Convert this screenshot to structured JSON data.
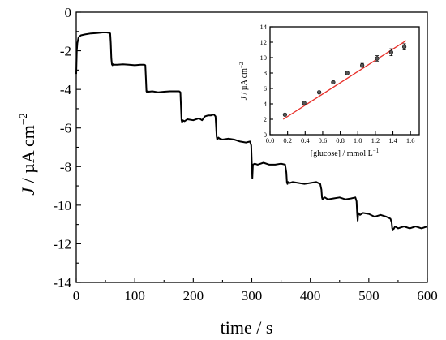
{
  "chart_data": [
    {
      "type": "line",
      "title": "",
      "xlabel": "time / s",
      "ylabel_var": "J",
      "ylabel_rest": " / µA cm",
      "ylabel_exp": "−2",
      "xlim": [
        0,
        600
      ],
      "ylim": [
        -14,
        0
      ],
      "x_ticks": [
        "0",
        "100",
        "200",
        "300",
        "400",
        "500",
        "600"
      ],
      "y_ticks": [
        "0",
        "-2",
        "-4",
        "-6",
        "-8",
        "-10",
        "-12",
        "-14"
      ],
      "line_color": "#000000",
      "grid": false,
      "series": [
        {
          "x": [
            0,
            1,
            2,
            4,
            8,
            15,
            25,
            35,
            45,
            52,
            56,
            58,
            59,
            60,
            61,
            62,
            63,
            64,
            66,
            70,
            80,
            90,
            100,
            110,
            116,
            118,
            119,
            120,
            121,
            122,
            124,
            130,
            140,
            150,
            160,
            170,
            176,
            178,
            179,
            180,
            181,
            182,
            185,
            190,
            200,
            210,
            215,
            220,
            225,
            230,
            235,
            238,
            239,
            240,
            241,
            243,
            245,
            250,
            260,
            270,
            280,
            290,
            297,
            299,
            300,
            301,
            302,
            305,
            310,
            320,
            330,
            340,
            350,
            357,
            359,
            360,
            361,
            362,
            365,
            370,
            380,
            390,
            400,
            410,
            417,
            419,
            420,
            421,
            422,
            425,
            430,
            440,
            450,
            460,
            470,
            477,
            479,
            480,
            481,
            482,
            485,
            490,
            500,
            510,
            520,
            530,
            537,
            539,
            540,
            541,
            543,
            545,
            550,
            560,
            570,
            580,
            590,
            600
          ],
          "y": [
            -3.2,
            -2.0,
            -1.6,
            -1.3,
            -1.2,
            -1.15,
            -1.1,
            -1.08,
            -1.05,
            -1.05,
            -1.07,
            -1.1,
            -1.6,
            -2.4,
            -2.7,
            -2.75,
            -2.7,
            -2.72,
            -2.72,
            -2.72,
            -2.7,
            -2.72,
            -2.75,
            -2.72,
            -2.72,
            -2.75,
            -3.4,
            -4.1,
            -4.15,
            -4.1,
            -4.12,
            -4.1,
            -4.15,
            -4.12,
            -4.1,
            -4.1,
            -4.1,
            -4.15,
            -4.9,
            -5.6,
            -5.7,
            -5.6,
            -5.65,
            -5.55,
            -5.6,
            -5.5,
            -5.6,
            -5.4,
            -5.35,
            -5.35,
            -5.3,
            -5.4,
            -5.9,
            -6.45,
            -6.6,
            -6.5,
            -6.55,
            -6.6,
            -6.55,
            -6.6,
            -6.7,
            -6.75,
            -6.7,
            -6.9,
            -7.8,
            -8.6,
            -7.9,
            -7.85,
            -7.9,
            -7.8,
            -7.9,
            -7.9,
            -7.85,
            -7.9,
            -8.3,
            -8.8,
            -8.9,
            -8.8,
            -8.85,
            -8.8,
            -8.85,
            -8.9,
            -8.85,
            -8.8,
            -8.9,
            -9.2,
            -9.6,
            -9.7,
            -9.65,
            -9.6,
            -9.7,
            -9.65,
            -9.6,
            -9.7,
            -9.65,
            -9.6,
            -9.8,
            -10.4,
            -10.8,
            -10.4,
            -10.5,
            -10.4,
            -10.45,
            -10.6,
            -10.5,
            -10.6,
            -10.7,
            -10.9,
            -11.2,
            -11.3,
            -11.2,
            -11.1,
            -11.2,
            -11.1,
            -11.2,
            -11.1,
            -11.2,
            -11.1
          ]
        }
      ]
    },
    {
      "type": "scatter",
      "title": "",
      "xlabel": "[glucose] / mmol L",
      "xlabel_exp": "−1",
      "ylabel_var": "J",
      "ylabel_rest": " / µA cm",
      "ylabel_exp": "−2",
      "xlim": [
        0.0,
        1.7
      ],
      "ylim": [
        0,
        14
      ],
      "x_ticks": [
        "0.0",
        "0.2",
        "0.4",
        "0.6",
        "0.8",
        "1.0",
        "1.2",
        "1.4",
        "1.6"
      ],
      "y_ticks": [
        "0",
        "2",
        "4",
        "6",
        "8",
        "10",
        "12",
        "14"
      ],
      "marker_color": "#555555",
      "fit_color": "#e8302a",
      "series": [
        {
          "x": [
            0.17,
            0.39,
            0.56,
            0.72,
            0.88,
            1.05,
            1.22,
            1.38,
            1.53
          ],
          "y": [
            2.6,
            4.1,
            5.5,
            6.8,
            8.0,
            9.0,
            9.9,
            10.7,
            11.4
          ],
          "err": [
            0.15,
            0.15,
            0.15,
            0.15,
            0.2,
            0.25,
            0.35,
            0.45,
            0.4
          ]
        }
      ],
      "fit_line": {
        "x": [
          0.15,
          1.55
        ],
        "y": [
          2.0,
          12.2
        ]
      }
    }
  ]
}
